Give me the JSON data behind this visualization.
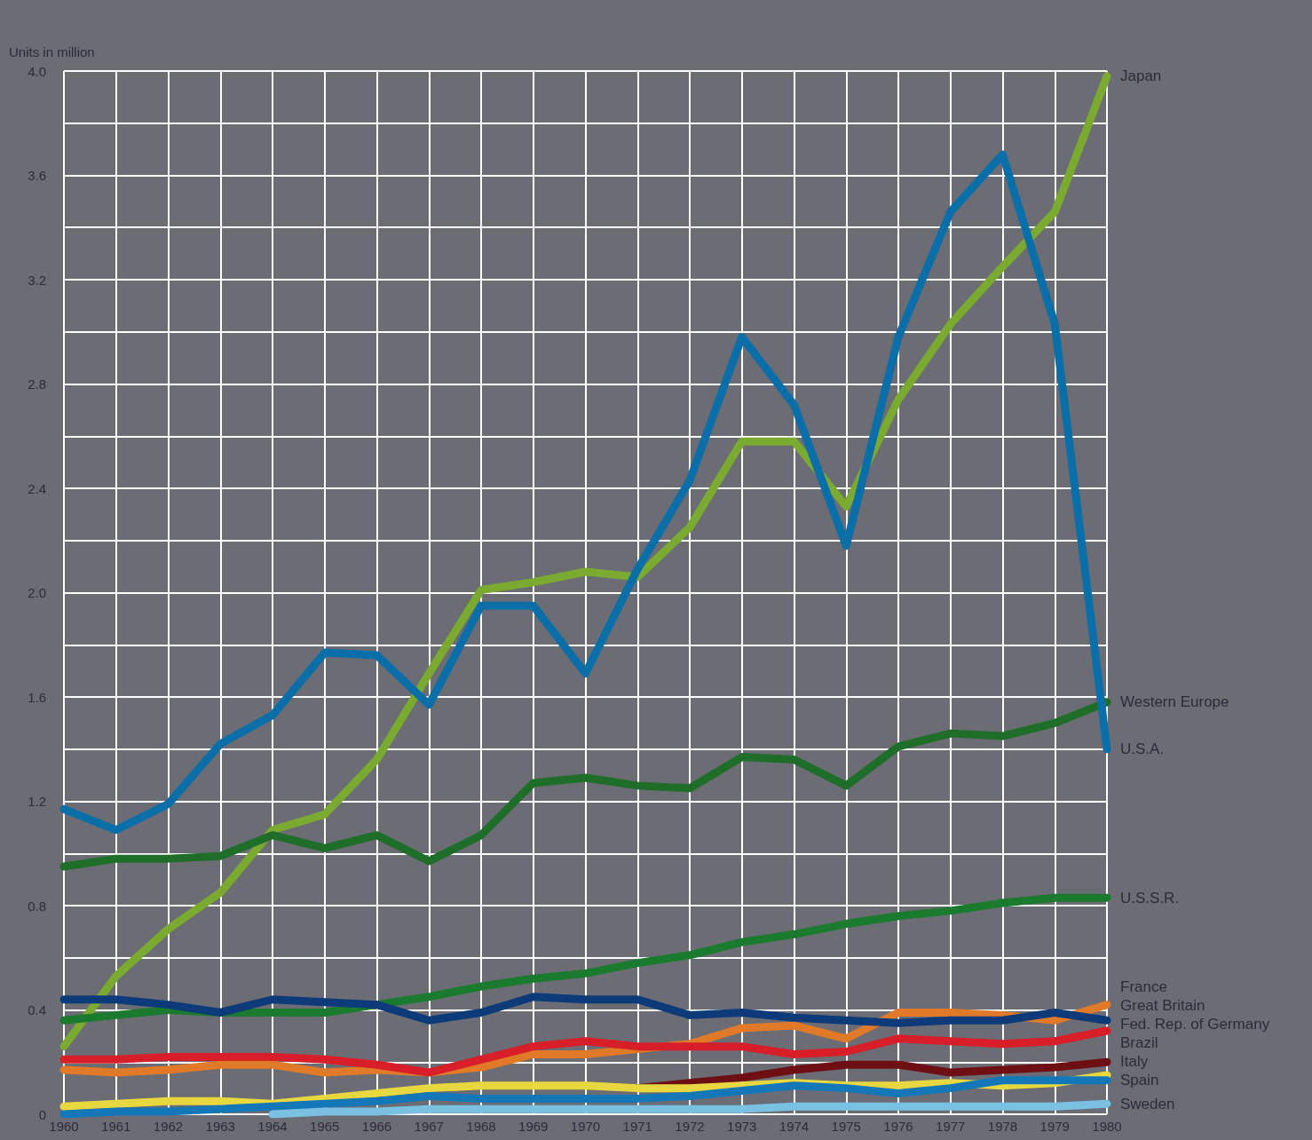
{
  "chart_data": {
    "type": "line",
    "ylabel": "Units in million",
    "categories": [
      "1960",
      "1961",
      "1962",
      "1963",
      "1964",
      "1965",
      "1966",
      "1967",
      "1968",
      "1969",
      "1970",
      "1971",
      "1972",
      "1973",
      "1974",
      "1975",
      "1976",
      "1977",
      "1978",
      "1979",
      "1980"
    ],
    "ylim": [
      0,
      4.0
    ],
    "yticks": [
      {
        "value": 0,
        "label": "0"
      },
      {
        "value": 0.4,
        "label": "0.4"
      },
      {
        "value": 0.8,
        "label": "0.8"
      },
      {
        "value": 1.2,
        "label": "1.2"
      },
      {
        "value": 1.6,
        "label": "1.6"
      },
      {
        "value": 2,
        "label": "2.0"
      },
      {
        "value": 2.4,
        "label": "2.4"
      },
      {
        "value": 2.8,
        "label": "2.8"
      },
      {
        "value": 3.2,
        "label": "3.2"
      },
      {
        "value": 3.6,
        "label": "3.6"
      },
      {
        "value": 4,
        "label": "4.0"
      }
    ],
    "grid": true,
    "legend": false,
    "marker": "none",
    "line_style": "solid",
    "series": [
      {
        "name": "Japan",
        "color": "#7aaa30",
        "values": [
          0.26,
          0.53,
          0.71,
          0.85,
          1.09,
          1.15,
          1.36,
          1.69,
          2.01,
          2.04,
          2.08,
          2.06,
          2.25,
          2.58,
          2.58,
          2.33,
          2.74,
          3.03,
          3.25,
          3.46,
          3.98
        ]
      },
      {
        "name": "Western Europe",
        "color": "#1e6e2a",
        "values": [
          0.95,
          0.98,
          0.98,
          0.99,
          1.07,
          1.02,
          1.07,
          0.97,
          1.07,
          1.27,
          1.29,
          1.26,
          1.25,
          1.37,
          1.36,
          1.26,
          1.41,
          1.46,
          1.45,
          1.5,
          1.58
        ]
      },
      {
        "name": "U.S.A.",
        "color": "#0a6fa8",
        "values": [
          1.17,
          1.09,
          1.19,
          1.42,
          1.53,
          1.77,
          1.76,
          1.57,
          1.95,
          1.95,
          1.69,
          2.09,
          2.43,
          2.98,
          2.72,
          2.18,
          2.98,
          3.46,
          3.68,
          3.03,
          1.4
        ]
      },
      {
        "name": "U.S.S.R.",
        "color": "#1a7a2e",
        "values": [
          0.36,
          0.38,
          0.4,
          0.39,
          0.39,
          0.39,
          0.42,
          0.45,
          0.49,
          0.52,
          0.54,
          0.58,
          0.61,
          0.66,
          0.69,
          0.73,
          0.76,
          0.78,
          0.81,
          0.83,
          0.83
        ]
      },
      {
        "name": "France",
        "color": "#e07a28",
        "values": [
          0.17,
          0.16,
          0.17,
          0.19,
          0.19,
          0.16,
          0.17,
          0.16,
          0.18,
          0.23,
          0.23,
          0.25,
          0.27,
          0.33,
          0.34,
          0.29,
          0.39,
          0.39,
          0.38,
          0.36,
          0.42
        ]
      },
      {
        "name": "Great Britain",
        "color": "#0d3a78",
        "values": [
          0.44,
          0.44,
          0.42,
          0.39,
          0.44,
          0.43,
          0.42,
          0.36,
          0.39,
          0.45,
          0.44,
          0.44,
          0.38,
          0.39,
          0.37,
          0.36,
          0.35,
          0.36,
          0.36,
          0.39,
          0.36
        ]
      },
      {
        "name": "Fed. Rep. of Germany",
        "color": "#d81e28",
        "values": [
          0.21,
          0.21,
          0.22,
          0.22,
          0.22,
          0.21,
          0.19,
          0.16,
          0.21,
          0.26,
          0.28,
          0.26,
          0.26,
          0.26,
          0.23,
          0.24,
          0.29,
          0.28,
          0.27,
          0.28,
          0.32
        ]
      },
      {
        "name": "Brazil",
        "color": "#6e0f14",
        "values": [
          null,
          null,
          null,
          null,
          null,
          null,
          null,
          null,
          null,
          null,
          null,
          0.1,
          0.12,
          0.14,
          0.17,
          0.19,
          0.19,
          0.16,
          0.17,
          0.18,
          0.2
        ]
      },
      {
        "name": "Italy",
        "color": "#e8d840",
        "values": [
          0.03,
          0.04,
          0.05,
          0.05,
          0.04,
          0.06,
          0.08,
          0.1,
          0.11,
          0.11,
          0.11,
          0.1,
          0.1,
          0.11,
          0.12,
          0.11,
          0.11,
          0.12,
          0.11,
          0.12,
          0.15
        ]
      },
      {
        "name": "Spain",
        "color": "#1478b8",
        "values": [
          0.0,
          0.01,
          0.01,
          0.02,
          0.03,
          0.04,
          0.05,
          0.07,
          0.06,
          0.06,
          0.06,
          0.06,
          0.07,
          0.09,
          0.11,
          0.1,
          0.08,
          0.1,
          0.13,
          0.13,
          0.13
        ]
      },
      {
        "name": "Sweden",
        "color": "#7ac0e0",
        "values": [
          null,
          null,
          null,
          null,
          0.0,
          0.01,
          0.01,
          0.02,
          0.02,
          0.02,
          0.02,
          0.02,
          0.02,
          0.02,
          0.03,
          0.03,
          0.03,
          0.03,
          0.03,
          0.03,
          0.04
        ]
      }
    ]
  }
}
